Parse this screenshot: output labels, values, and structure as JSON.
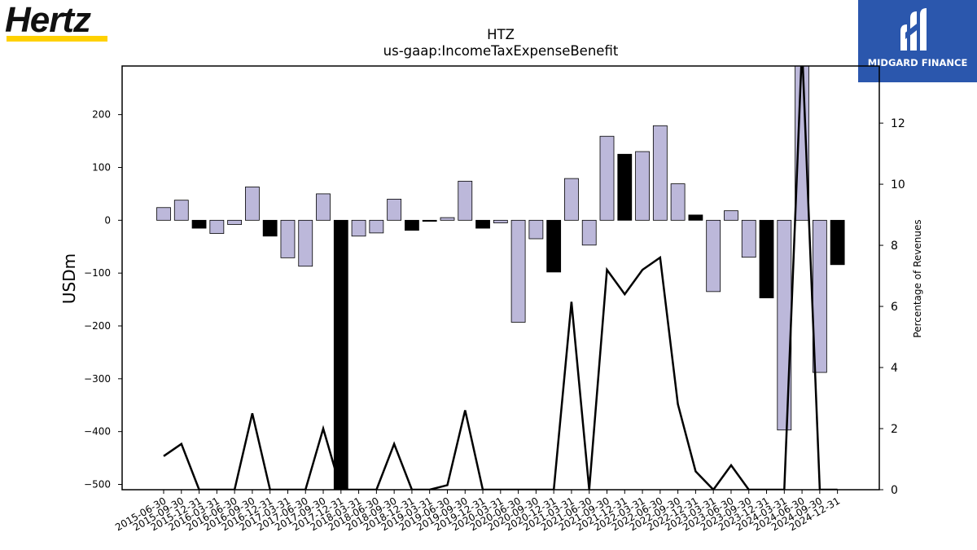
{
  "logos": {
    "left_brand": "Hertz",
    "right_brand": "MIDGARD FINANCE",
    "left_bar_color": "#FFD100",
    "right_bg_color": "#2b57ad"
  },
  "chart_data": {
    "type": "bar",
    "title": "HTZ",
    "subtitle": "us-gaap:IncomeTaxExpenseBenefit",
    "ylabel": "USDm",
    "y2label": "Percentage of Revenues",
    "ylim": [
      -510,
      292
    ],
    "y2lim": [
      0,
      13.87
    ],
    "yticks": [
      -500,
      -400,
      -300,
      -200,
      -100,
      0,
      100,
      200
    ],
    "ytick_labels": [
      "−500",
      "−400",
      "−300",
      "−200",
      "−100",
      "0",
      "100",
      "200"
    ],
    "y2ticks": [
      0,
      2,
      4,
      6,
      8,
      10,
      12
    ],
    "y2tick_labels": [
      "0",
      "2",
      "4",
      "6",
      "8",
      "10",
      "12"
    ],
    "grid": false,
    "categories": [
      "2015-06-30",
      "2015-09-30",
      "2015-12-31",
      "2016-03-31",
      "2016-06-30",
      "2016-09-30",
      "2016-12-31",
      "2017-03-31",
      "2017-06-30",
      "2017-09-30",
      "2017-12-31",
      "2018-03-31",
      "2018-06-30",
      "2018-09-30",
      "2018-12-31",
      "2019-03-31",
      "2019-06-30",
      "2019-09-30",
      "2019-12-31",
      "2020-03-31",
      "2020-06-30",
      "2020-09-30",
      "2020-12-31",
      "2021-03-31",
      "2021-06-30",
      "2021-09-30",
      "2021-12-31",
      "2022-03-31",
      "2022-06-30",
      "2022-09-30",
      "2022-12-31",
      "2023-03-31",
      "2023-06-30",
      "2023-09-30",
      "2023-12-31",
      "2024-03-31",
      "2024-06-30",
      "2024-09-30",
      "2024-12-31"
    ],
    "series": [
      {
        "type": "bar",
        "values": [
          24,
          38,
          -15,
          -25,
          -8,
          63,
          -30,
          -71,
          -87,
          50,
          -530,
          -30,
          -24,
          40,
          -19,
          -2,
          5,
          74,
          -15,
          -5,
          -193,
          -35,
          -98,
          79,
          -47,
          159,
          125,
          130,
          179,
          69,
          10,
          -135,
          18,
          -70,
          -147,
          -397,
          292,
          -288,
          -84
        ],
        "bar_colors": [
          "#bcb8da",
          "#bcb8da",
          "#000000",
          "#bcb8da",
          "#bcb8da",
          "#bcb8da",
          "#000000",
          "#bcb8da",
          "#bcb8da",
          "#bcb8da",
          "#000000",
          "#bcb8da",
          "#bcb8da",
          "#bcb8da",
          "#000000",
          "#000000",
          "#bcb8da",
          "#bcb8da",
          "#000000",
          "#bcb8da",
          "#bcb8da",
          "#bcb8da",
          "#000000",
          "#bcb8da",
          "#bcb8da",
          "#bcb8da",
          "#000000",
          "#bcb8da",
          "#bcb8da",
          "#bcb8da",
          "#000000",
          "#bcb8da",
          "#bcb8da",
          "#bcb8da",
          "#000000",
          "#bcb8da",
          "#bcb8da",
          "#bcb8da",
          "#000000"
        ]
      },
      {
        "type": "line",
        "axis": "right",
        "color": "#000000",
        "values": [
          1.1,
          1.5,
          0,
          0,
          0,
          2.5,
          0,
          0,
          0,
          2.0,
          0,
          0,
          0,
          1.5,
          0,
          0,
          0.15,
          2.6,
          0,
          0,
          0,
          0,
          0,
          6.15,
          0,
          7.2,
          6.4,
          7.2,
          7.6,
          2.8,
          0.6,
          0,
          0.8,
          0,
          0,
          0,
          14.5,
          0,
          0
        ]
      }
    ]
  }
}
